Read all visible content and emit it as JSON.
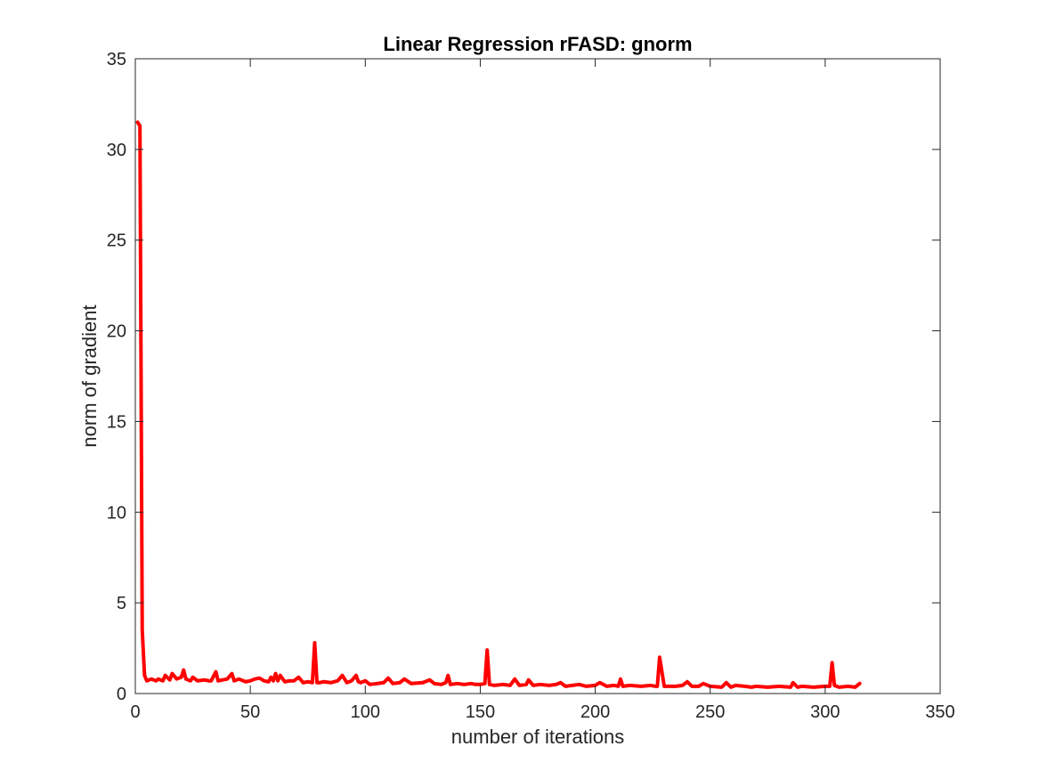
{
  "chart_data": {
    "type": "line",
    "title": "Linear Regression rFASD: gnorm",
    "xlabel": "number of iterations",
    "ylabel": "norm of gradient",
    "xlim": [
      0,
      350
    ],
    "ylim": [
      0,
      35
    ],
    "xticks": [
      0,
      50,
      100,
      150,
      200,
      250,
      300,
      350
    ],
    "yticks": [
      0,
      5,
      10,
      15,
      20,
      25,
      30,
      35
    ],
    "grid": false,
    "line_color": "#ff0000",
    "series": [
      {
        "x": [
          1,
          2,
          3,
          4,
          5,
          7,
          9,
          10,
          12,
          13,
          15,
          16,
          18,
          20,
          21,
          22,
          24,
          25,
          27,
          30,
          32,
          33,
          35,
          36,
          38,
          40,
          42,
          43,
          45,
          48,
          50,
          52,
          54,
          56,
          58,
          59,
          60,
          61,
          62,
          63,
          65,
          67,
          69,
          71,
          73,
          75,
          77,
          78,
          79,
          80,
          82,
          85,
          88,
          90,
          92,
          94,
          96,
          97,
          98,
          100,
          102,
          105,
          108,
          110,
          112,
          115,
          117,
          120,
          125,
          128,
          130,
          133,
          135,
          136,
          137,
          140,
          143,
          146,
          148,
          150,
          152,
          153,
          154,
          156,
          160,
          163,
          165,
          167,
          170,
          171,
          173,
          176,
          180,
          183,
          185,
          187,
          190,
          193,
          196,
          200,
          202,
          205,
          208,
          210,
          211,
          212,
          215,
          220,
          224,
          226,
          227,
          228,
          230,
          235,
          238,
          240,
          242,
          245,
          247,
          250,
          255,
          257,
          259,
          261,
          265,
          268,
          270,
          275,
          280,
          285,
          286,
          288,
          290,
          295,
          300,
          302,
          303,
          304,
          306,
          310,
          313,
          315
        ],
        "y": [
          31.5,
          31.3,
          3.5,
          1.0,
          0.7,
          0.8,
          0.7,
          0.8,
          0.7,
          1.0,
          0.75,
          1.1,
          0.8,
          0.9,
          1.3,
          0.8,
          0.7,
          0.9,
          0.7,
          0.75,
          0.7,
          0.7,
          1.2,
          0.7,
          0.75,
          0.8,
          1.1,
          0.7,
          0.8,
          0.65,
          0.7,
          0.8,
          0.85,
          0.7,
          0.65,
          0.9,
          0.7,
          1.1,
          0.7,
          1.0,
          0.65,
          0.7,
          0.7,
          0.9,
          0.6,
          0.65,
          0.6,
          2.8,
          0.6,
          0.6,
          0.65,
          0.6,
          0.7,
          1.0,
          0.6,
          0.7,
          1.0,
          0.65,
          0.6,
          0.7,
          0.5,
          0.55,
          0.6,
          0.85,
          0.55,
          0.6,
          0.8,
          0.55,
          0.6,
          0.75,
          0.55,
          0.5,
          0.6,
          1.0,
          0.5,
          0.55,
          0.5,
          0.55,
          0.5,
          0.5,
          0.55,
          2.4,
          0.5,
          0.45,
          0.5,
          0.45,
          0.8,
          0.45,
          0.5,
          0.75,
          0.45,
          0.5,
          0.45,
          0.5,
          0.6,
          0.4,
          0.45,
          0.5,
          0.4,
          0.45,
          0.6,
          0.4,
          0.45,
          0.4,
          0.8,
          0.4,
          0.45,
          0.4,
          0.45,
          0.4,
          0.4,
          2.0,
          0.4,
          0.4,
          0.45,
          0.65,
          0.4,
          0.4,
          0.55,
          0.4,
          0.35,
          0.6,
          0.35,
          0.45,
          0.4,
          0.35,
          0.4,
          0.35,
          0.4,
          0.35,
          0.6,
          0.35,
          0.4,
          0.35,
          0.4,
          0.4,
          1.7,
          0.45,
          0.35,
          0.4,
          0.35,
          0.55
        ]
      }
    ]
  }
}
